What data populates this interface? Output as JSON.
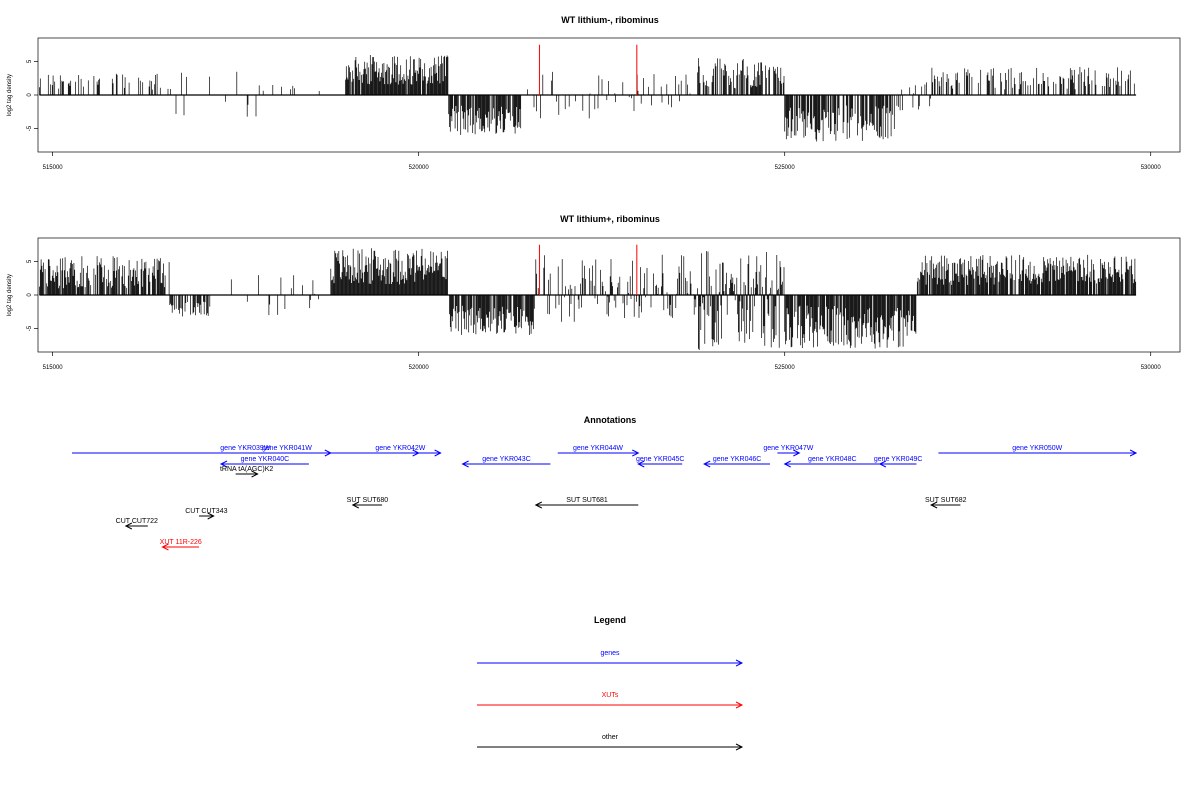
{
  "chart_data": [
    {
      "type": "bar",
      "title": "WT lithium-, ribominus",
      "ylabel": "log2 tag density",
      "xlim": [
        514800,
        530400
      ],
      "ylim": [
        -8.5,
        8.5
      ],
      "x_ticks": [
        515000,
        520000,
        525000,
        530000
      ],
      "y_ticks": [
        5,
        0,
        -5
      ],
      "red_marks_x": [
        521650,
        522980
      ],
      "red_marks_top": 7.5,
      "segments": [
        {
          "start": 514820,
          "end": 516500,
          "min": 0.8,
          "max": 3.2,
          "density": 0.35
        },
        {
          "start": 516500,
          "end": 517800,
          "min": -3.8,
          "max": 3.5,
          "density": 0.12
        },
        {
          "start": 517800,
          "end": 519000,
          "min": 0.4,
          "max": 1.5,
          "density": 0.05
        },
        {
          "start": 519000,
          "end": 520400,
          "min": 1.5,
          "max": 6.0,
          "density": 0.95
        },
        {
          "start": 520400,
          "end": 521400,
          "min": -6.0,
          "max": -1.5,
          "density": 0.9
        },
        {
          "start": 521400,
          "end": 523800,
          "min": -3.5,
          "max": 3.5,
          "density": 0.22
        },
        {
          "start": 523800,
          "end": 525000,
          "min": 1.0,
          "max": 5.5,
          "density": 0.6
        },
        {
          "start": 525000,
          "end": 526500,
          "min": -7.0,
          "max": -1.5,
          "density": 0.75
        },
        {
          "start": 526500,
          "end": 527000,
          "min": -3.5,
          "max": 2.5,
          "density": 0.3
        },
        {
          "start": 527000,
          "end": 529800,
          "min": 0.8,
          "max": 4.2,
          "density": 0.4
        }
      ]
    },
    {
      "type": "bar",
      "title": "WT lithium+, ribominus",
      "ylabel": "log2 tag density",
      "xlim": [
        514800,
        530400
      ],
      "ylim": [
        -8.5,
        8.5
      ],
      "x_ticks": [
        515000,
        520000,
        525000,
        530000
      ],
      "y_ticks": [
        5,
        0,
        -5
      ],
      "red_marks_x": [
        521650,
        522980
      ],
      "red_marks_top": 7.5,
      "segments": [
        {
          "start": 514820,
          "end": 516600,
          "min": 1.0,
          "max": 5.8,
          "density": 0.85
        },
        {
          "start": 516600,
          "end": 517200,
          "min": -3.2,
          "max": -1.0,
          "density": 0.6
        },
        {
          "start": 517200,
          "end": 518800,
          "min": -3.5,
          "max": 3.0,
          "density": 0.1
        },
        {
          "start": 518800,
          "end": 520400,
          "min": 1.5,
          "max": 7.0,
          "density": 1.0
        },
        {
          "start": 520400,
          "end": 521600,
          "min": -6.0,
          "max": -1.5,
          "density": 0.9
        },
        {
          "start": 521600,
          "end": 523800,
          "min": -4.0,
          "max": 6.0,
          "density": 0.55
        },
        {
          "start": 523800,
          "end": 525000,
          "min": -8.2,
          "max": 7.0,
          "density": 0.9
        },
        {
          "start": 525000,
          "end": 526800,
          "min": -8.0,
          "max": -1.5,
          "density": 0.9
        },
        {
          "start": 526800,
          "end": 529800,
          "min": 1.5,
          "max": 6.0,
          "density": 0.9
        }
      ]
    }
  ],
  "annotations": {
    "title": "Annotations",
    "features": [
      {
        "label": "gene YKR039W",
        "category": "genes",
        "start": 514500,
        "end": 520000,
        "dir": 1,
        "row": 0
      },
      {
        "label": "gene YKR041W",
        "category": "genes",
        "start": 517600,
        "end": 518800,
        "dir": 1,
        "row": 0
      },
      {
        "label": "gene YKR040C",
        "category": "genes",
        "start": 517300,
        "end": 518500,
        "dir": -1,
        "row": 1
      },
      {
        "label": "tRNA tA(AGC)K2",
        "category": "other",
        "start": 517500,
        "end": 517800,
        "dir": 1,
        "row": 2
      },
      {
        "label": "gene YKR042W",
        "category": "genes",
        "start": 519200,
        "end": 520300,
        "dir": 1,
        "row": 0
      },
      {
        "label": "gene YKR043C",
        "category": "genes",
        "start": 520600,
        "end": 521800,
        "dir": -1,
        "row": 1
      },
      {
        "label": "gene YKR044W",
        "category": "genes",
        "start": 521900,
        "end": 523000,
        "dir": 1,
        "row": 0
      },
      {
        "label": "gene YKR045C",
        "category": "genes",
        "start": 523000,
        "end": 523600,
        "dir": -1,
        "row": 1
      },
      {
        "label": "gene YKR046C",
        "category": "genes",
        "start": 523900,
        "end": 524800,
        "dir": -1,
        "row": 1
      },
      {
        "label": "gene YKR047W",
        "category": "genes",
        "start": 524900,
        "end": 525200,
        "dir": 1,
        "row": 0
      },
      {
        "label": "gene YKR048C",
        "category": "genes",
        "start": 525000,
        "end": 526300,
        "dir": -1,
        "row": 1
      },
      {
        "label": "gene YKR049C",
        "category": "genes",
        "start": 526300,
        "end": 526800,
        "dir": -1,
        "row": 1
      },
      {
        "label": "gene YKR050W",
        "category": "genes",
        "start": 527100,
        "end": 529800,
        "dir": 1,
        "row": 0
      },
      {
        "label": "SUT SUT680",
        "category": "other",
        "start": 519100,
        "end": 519500,
        "dir": -1,
        "row": 4
      },
      {
        "label": "SUT SUT681",
        "category": "other",
        "start": 521600,
        "end": 523000,
        "dir": -1,
        "row": 4
      },
      {
        "label": "SUT SUT682",
        "category": "other",
        "start": 527000,
        "end": 527400,
        "dir": -1,
        "row": 4
      },
      {
        "label": "CUT CUT343",
        "category": "other",
        "start": 517000,
        "end": 517200,
        "dir": 1,
        "row": 5
      },
      {
        "label": "CUT CUT722",
        "category": "other",
        "start": 516000,
        "end": 516300,
        "dir": -1,
        "row": 6
      },
      {
        "label": "XUT 11R-226",
        "category": "XUTs",
        "start": 516500,
        "end": 517000,
        "dir": -1,
        "row": 7
      }
    ]
  },
  "legend": {
    "title": "Legend",
    "items": [
      {
        "label": "genes",
        "color": "#0000ff"
      },
      {
        "label": "XUTs",
        "color": "#ff0000"
      },
      {
        "label": "other",
        "color": "#000000"
      }
    ]
  },
  "colors": {
    "genes": "#0000ff",
    "XUTs": "#ff0000",
    "other": "#000000",
    "red_marks": "#ff0000"
  }
}
